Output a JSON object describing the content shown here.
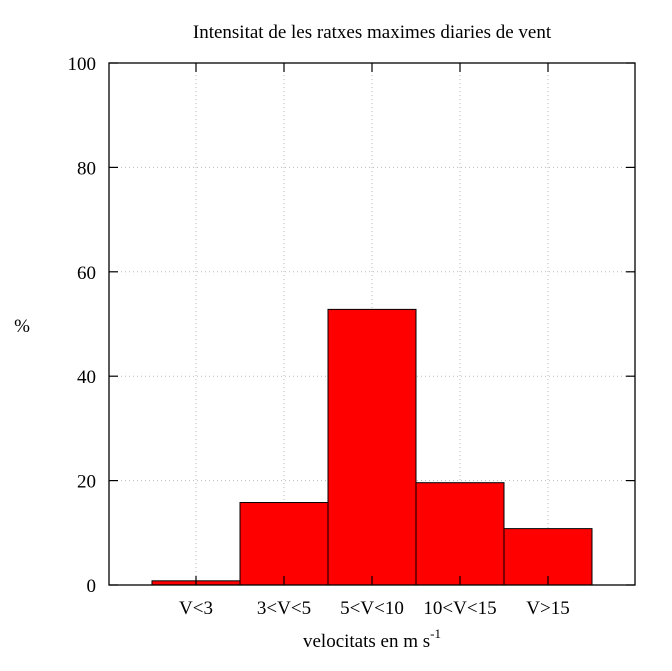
{
  "chart_data": {
    "type": "bar",
    "title": "Intensitat de les ratxes maximes diaries de vent",
    "xlabel": "velocitats en m s",
    "xlabel_superscript": "-1",
    "ylabel": "%",
    "categories": [
      "V<3",
      "3<V<5",
      "5<V<10",
      "10<V<15",
      "V>15"
    ],
    "values": [
      0.8,
      15.8,
      52.8,
      19.6,
      10.8
    ],
    "ylim": [
      0,
      100
    ],
    "yticks": [
      0,
      20,
      40,
      60,
      80,
      100
    ],
    "grid": true,
    "legend": "none",
    "bar_color": "#ff0000"
  }
}
